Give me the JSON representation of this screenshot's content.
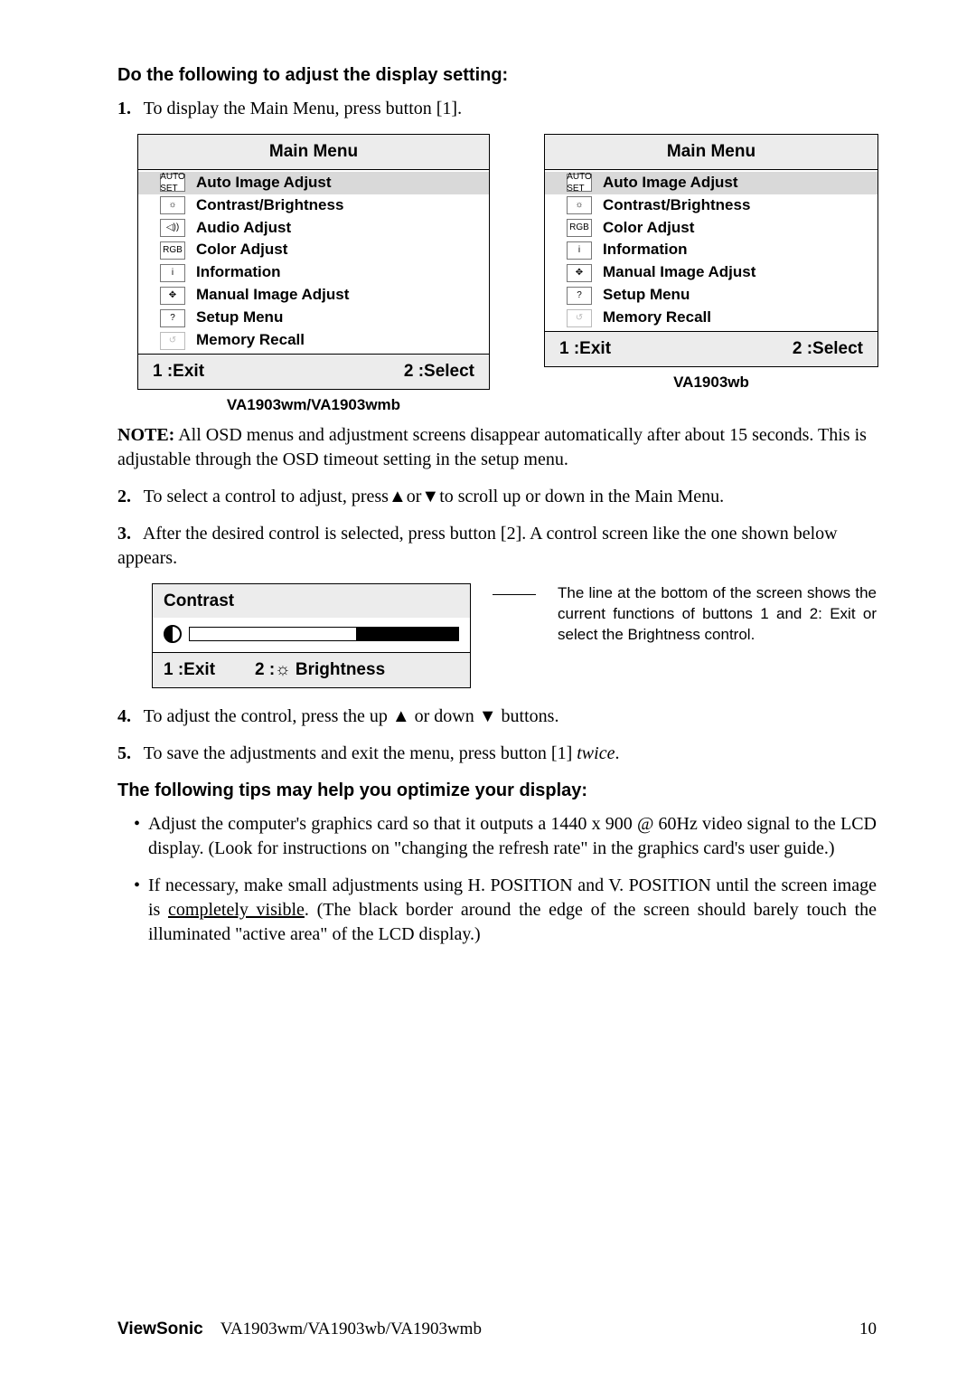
{
  "heading1": "Do the following to adjust the display setting:",
  "step1": {
    "num": "1.",
    "text": "To display the Main Menu, press button [1]."
  },
  "menuLeft": {
    "title": "Main Menu",
    "items": [
      {
        "icon": "AUTO SET",
        "label": "Auto Image Adjust",
        "selected": true
      },
      {
        "icon": "☼",
        "label": "Contrast/Brightness"
      },
      {
        "icon": "◁))",
        "label": "Audio Adjust"
      },
      {
        "icon": "RGB",
        "label": "Color Adjust"
      },
      {
        "icon": "i",
        "label": "Information"
      },
      {
        "icon": "✥",
        "label": "Manual Image Adjust"
      },
      {
        "icon": "?",
        "label": "Setup Menu"
      },
      {
        "icon": "↺",
        "label": "Memory Recall",
        "dim": true
      }
    ],
    "footerL": "1 :Exit",
    "footerR": "2 :Select",
    "caption": "VA1903wm/VA1903wmb"
  },
  "menuRight": {
    "title": "Main Menu",
    "items": [
      {
        "icon": "AUTO SET",
        "label": "Auto Image Adjust",
        "selected": true
      },
      {
        "icon": "☼",
        "label": "Contrast/Brightness"
      },
      {
        "icon": "RGB",
        "label": "Color Adjust"
      },
      {
        "icon": "i",
        "label": "Information"
      },
      {
        "icon": "✥",
        "label": "Manual Image Adjust"
      },
      {
        "icon": "?",
        "label": "Setup Menu"
      },
      {
        "icon": "↺",
        "label": "Memory Recall",
        "dim": true
      }
    ],
    "footerL": "1 :Exit",
    "footerR": "2 :Select",
    "caption": "VA1903wb"
  },
  "noteLabel": "NOTE:",
  "noteText": " All OSD menus and adjustment screens disappear automatically after about 15 seconds. This is adjustable through the OSD timeout setting in the setup menu.",
  "step2": {
    "num": "2.",
    "text": "To select a control to adjust, press▲or▼to scroll up or down in the Main Menu."
  },
  "step3": {
    "num": "3.",
    "text": "After the desired control is selected, press button [2]. A control screen like the one shown below appears."
  },
  "contrast": {
    "title": "Contrast",
    "footL": "1 :Exit",
    "footR": "2 :☼ Brightness"
  },
  "callout": "The line at the bottom of the screen shows the current functions of buttons 1 and 2: Exit or select the Brightness control.",
  "step4": {
    "num": "4.",
    "text": "To adjust the control, press the up ▲ or down ▼ buttons."
  },
  "step5": {
    "num": "5.",
    "pre": "To save the adjustments and exit the menu, press button [1] ",
    "ital": "twice",
    "post": "."
  },
  "heading2": "The following tips may help you optimize your display:",
  "bullets": [
    "Adjust the computer's graphics card so that it outputs a 1440 x 900 @ 60Hz video signal to the LCD display. (Look for instructions on \"changing the refresh rate\" in the graphics card's user guide.)",
    "If necessary, make small adjustments using H. POSITION and V. POSITION until the screen image is <u>completely visible</u>. (The black border around the edge of the screen should barely touch the illuminated \"active area\" of the LCD display.)"
  ],
  "footer": {
    "brand": "ViewSonic",
    "model": "VA1903wm/VA1903wb/VA1903wmb",
    "page": "10"
  }
}
